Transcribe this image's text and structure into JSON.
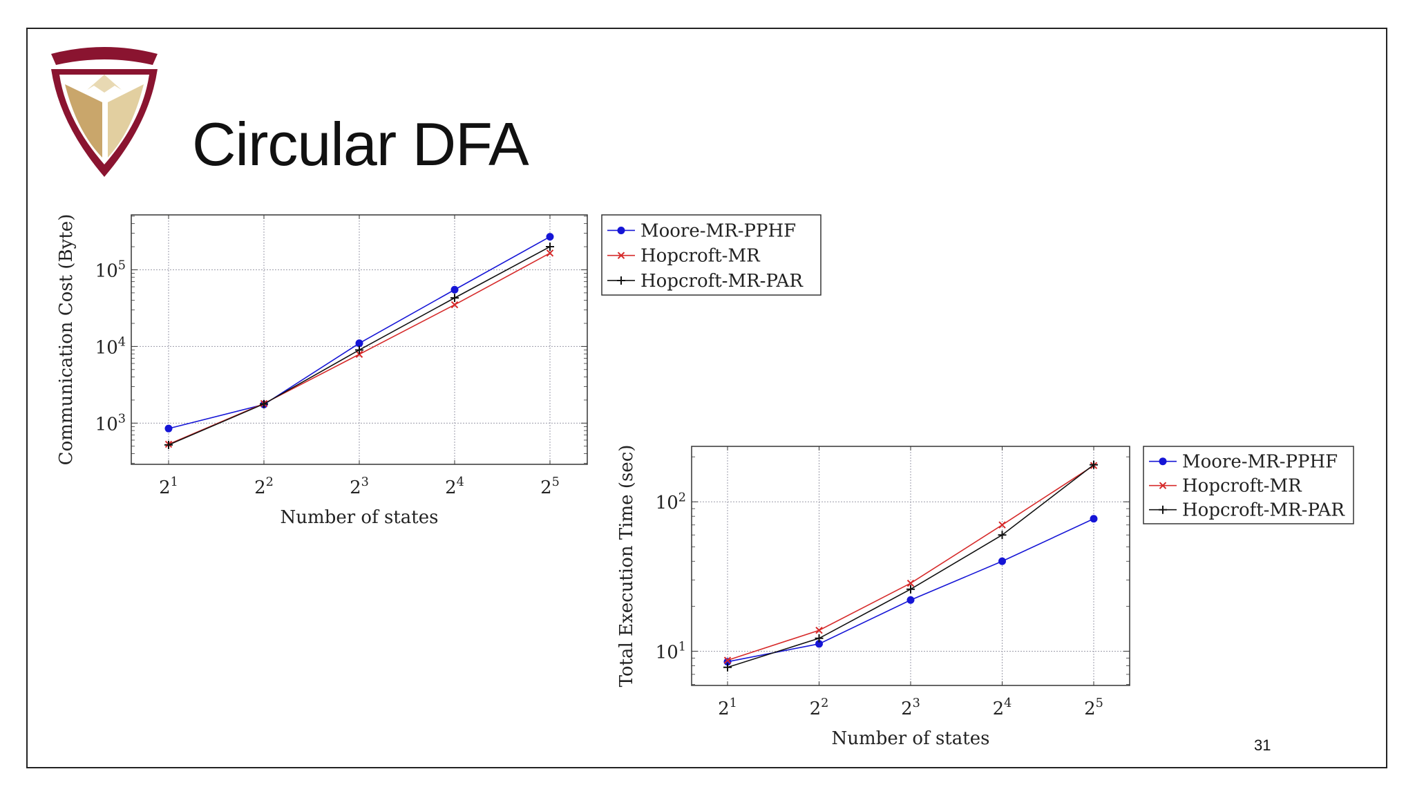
{
  "slide": {
    "title": "Circular DFA",
    "page_number": "31"
  },
  "colors": {
    "moore": "#1515d6",
    "hopcroft": "#d62a2a",
    "hopcroft_par": "#111111",
    "logo_maroon": "#8a1430",
    "logo_gold": "#c9a66b"
  },
  "chart_data": [
    {
      "type": "line",
      "title": "",
      "xlabel": "Number of states",
      "ylabel": "Communication Cost (Byte)",
      "x": [
        2,
        4,
        8,
        16,
        32
      ],
      "x_tick_labels": [
        {
          "base": "2",
          "exp": "1"
        },
        {
          "base": "2",
          "exp": "2"
        },
        {
          "base": "2",
          "exp": "3"
        },
        {
          "base": "2",
          "exp": "4"
        },
        {
          "base": "2",
          "exp": "5"
        }
      ],
      "y_scale": "log",
      "ylim": [
        290,
        520000
      ],
      "y_tick_values": [
        1000,
        10000,
        100000
      ],
      "y_tick_labels": [
        {
          "base": "10",
          "exp": "3"
        },
        {
          "base": "10",
          "exp": "4"
        },
        {
          "base": "10",
          "exp": "5"
        }
      ],
      "grid": true,
      "legend_position": "outside-right-top",
      "series": [
        {
          "name": "Moore-MR-PPHF",
          "marker": "circle",
          "color_key": "moore",
          "values": [
            850,
            1750,
            11000,
            55000,
            270000
          ]
        },
        {
          "name": "Hopcroft-MR",
          "marker": "x",
          "color_key": "hopcroft",
          "values": [
            530,
            1800,
            7900,
            35000,
            165000
          ]
        },
        {
          "name": "Hopcroft-MR-PAR",
          "marker": "plus",
          "color_key": "hopcroft_par",
          "values": [
            520,
            1780,
            9000,
            43000,
            200000
          ]
        }
      ]
    },
    {
      "type": "line",
      "title": "",
      "xlabel": "Number of states",
      "ylabel": "Total Execution Time (sec)",
      "x": [
        2,
        4,
        8,
        16,
        32
      ],
      "x_tick_labels": [
        {
          "base": "2",
          "exp": "1"
        },
        {
          "base": "2",
          "exp": "2"
        },
        {
          "base": "2",
          "exp": "3"
        },
        {
          "base": "2",
          "exp": "4"
        },
        {
          "base": "2",
          "exp": "5"
        }
      ],
      "y_scale": "log",
      "ylim": [
        5.9,
        235
      ],
      "y_tick_values": [
        10,
        100
      ],
      "y_tick_labels": [
        {
          "base": "10",
          "exp": "1"
        },
        {
          "base": "10",
          "exp": "2"
        }
      ],
      "grid": true,
      "legend_position": "outside-right-top",
      "series": [
        {
          "name": "Moore-MR-PPHF",
          "marker": "circle",
          "color_key": "moore",
          "values": [
            8.5,
            11.2,
            22,
            40,
            77
          ]
        },
        {
          "name": "Hopcroft-MR",
          "marker": "x",
          "color_key": "hopcroft",
          "values": [
            8.7,
            13.8,
            28.5,
            70,
            175
          ]
        },
        {
          "name": "Hopcroft-MR-PAR",
          "marker": "plus",
          "color_key": "hopcroft_par",
          "values": [
            7.8,
            12.2,
            26,
            60,
            177
          ]
        }
      ]
    }
  ]
}
